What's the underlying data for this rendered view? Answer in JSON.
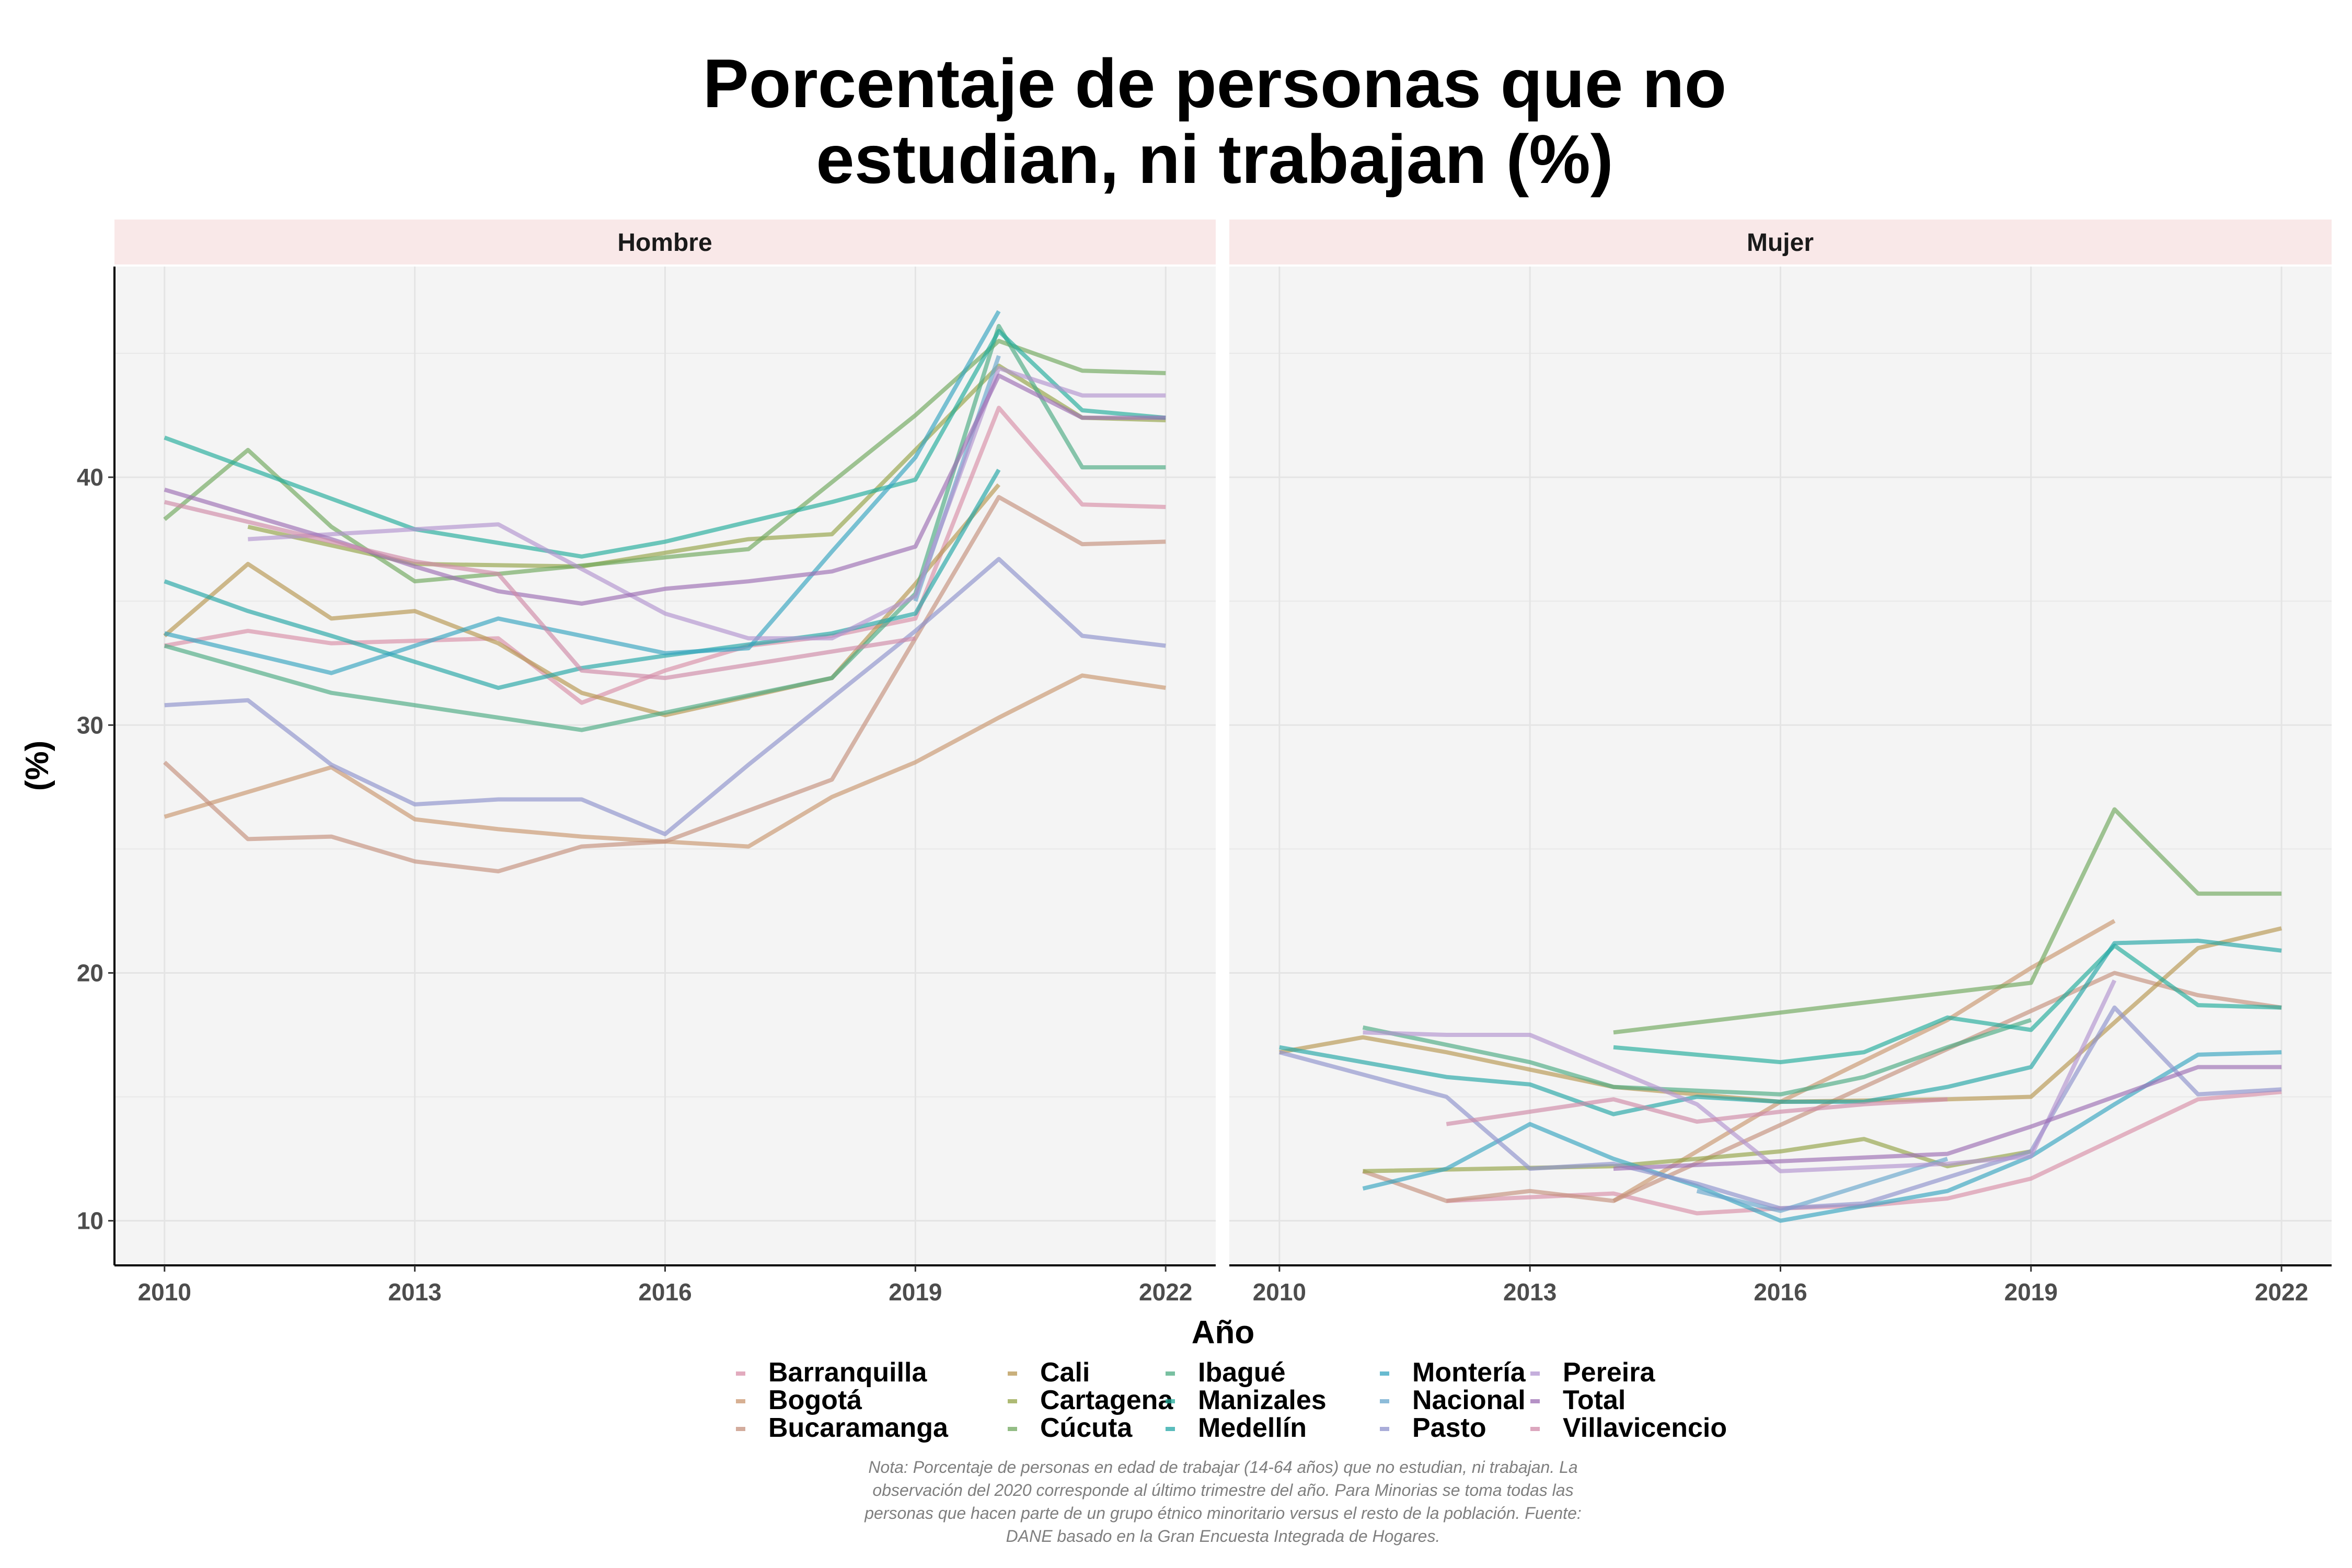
{
  "chart_data": {
    "type": "line",
    "title": "Porcentaje de personas que no estudian, ni trabajan (%)",
    "title_lines": [
      "Porcentaje de personas que no",
      "estudian, ni trabajan (%)"
    ],
    "xlabel": "Año",
    "ylabel": "(%)",
    "x_ticks": [
      "2010",
      "2013",
      "2016",
      "2019",
      "2022"
    ],
    "y_ticks": [
      "10",
      "20",
      "30",
      "40"
    ],
    "xlim": [
      2009.4,
      2022.6
    ],
    "ylim": [
      8.2,
      48.5
    ],
    "grid": true,
    "legend_position": "bottom",
    "note": "Nota: Porcentaje de personas en edad de trabajar (14-64 años) que no estudian, ni trabajan. La observación del 2020 corresponde al último trimestre del año. Para Minorías se toma todas las personas que hacen parte de un grupo étnico minoritario versus el resto de la población. Fuente: DANE basado en la Gran Encuesta Integrada de Hogares.",
    "note_lines": [
      "Nota: Porcentaje de personas en edad de trabajar (14-64 años) que no estudian, ni trabajan. La",
      "observación del 2020 corresponde al último trimestre del año. Para Minorias se toma todas las",
      "personas que hacen parte de un grupo étnico minoritario versus el resto de la población. Fuente:",
      "DANE basado en la Gran Encuesta Integrada de Hogares."
    ],
    "legend_columns": [
      [
        "Barranquilla",
        "Bogotá",
        "Bucaramanga"
      ],
      [
        "Cali",
        "Cartagena",
        "Cúcuta"
      ],
      [
        "Ibagué",
        "Manizales",
        "Medellín"
      ],
      [
        "Montería",
        "Nacional",
        "Pasto"
      ],
      [
        "Pereira",
        "Total",
        "Villavicencio"
      ]
    ],
    "colors": {
      "Barranquilla": "#d88fa8",
      "Bogotá": "#c9966f",
      "Bucaramanga": "#c4907c",
      "Cali": "#b79650",
      "Cartagena": "#93a346",
      "Cúcuta": "#6fa75c",
      "Ibagué": "#4bab82",
      "Manizales": "#22ac9b",
      "Medellín": "#23a6a6",
      "Montería": "#36a4c0",
      "Nacional": "#67a6cc",
      "Pasto": "#8e92cc",
      "Pereira": "#b294d0",
      "Total": "#9c6eb3",
      "Villavicencio": "#d08aa8"
    },
    "facets": [
      {
        "name": "Hombre",
        "series": [
          {
            "name": "Barranquilla",
            "x": [
              2010,
              2011,
              2012,
              2013,
              2014,
              2015,
              2016,
              2017,
              2018,
              2019,
              2020,
              2021,
              2022
            ],
            "y": [
              33.2,
              33.8,
              33.3,
              33.4,
              33.5,
              30.9,
              32.2,
              33.2,
              33.6,
              34.3,
              42.8,
              38.9,
              38.8
            ]
          },
          {
            "name": "Bogotá",
            "x": [
              2010,
              2012,
              2013,
              2014,
              2015,
              2016,
              2017,
              2018,
              2019,
              2020,
              2021,
              2022
            ],
            "y": [
              26.3,
              28.3,
              26.2,
              25.8,
              25.5,
              25.3,
              25.1,
              27.1,
              28.5,
              30.3,
              32.0,
              31.5
            ]
          },
          {
            "name": "Bucaramanga",
            "x": [
              2010,
              2011,
              2012,
              2013,
              2014,
              2015,
              2016,
              2018,
              2019,
              2020,
              2021,
              2022
            ],
            "y": [
              28.5,
              25.4,
              25.5,
              24.5,
              24.1,
              25.1,
              25.3,
              27.8,
              33.5,
              39.2,
              37.3,
              37.4
            ]
          },
          {
            "name": "Cali",
            "x": [
              2010,
              2011,
              2012,
              2013,
              2014,
              2015,
              2016,
              2018,
              2019,
              2020
            ],
            "y": [
              33.6,
              36.5,
              34.3,
              34.6,
              33.3,
              31.3,
              30.4,
              31.9,
              35.7,
              39.7
            ]
          },
          {
            "name": "Cartagena",
            "x": [
              2011,
              2013,
              2015,
              2017,
              2018,
              2020,
              2021,
              2022
            ],
            "y": [
              38.0,
              36.5,
              36.4,
              37.5,
              37.7,
              44.5,
              42.4,
              42.3
            ]
          },
          {
            "name": "Cúcuta",
            "x": [
              2010,
              2011,
              2012,
              2013,
              2014,
              2017,
              2019,
              2020,
              2021,
              2022
            ],
            "y": [
              38.3,
              41.1,
              38.0,
              35.8,
              36.1,
              37.1,
              42.5,
              45.5,
              44.3,
              44.2
            ]
          },
          {
            "name": "Ibagué",
            "x": [
              2010,
              2012,
              2015,
              2016,
              2018,
              2019,
              2020,
              2021,
              2022
            ],
            "y": [
              33.2,
              31.3,
              29.8,
              30.5,
              31.9,
              35.3,
              46.1,
              40.4,
              40.4
            ]
          },
          {
            "name": "Manizales",
            "x": [
              2010,
              2013,
              2015,
              2016,
              2018,
              2019,
              2020,
              2021,
              2022
            ],
            "y": [
              41.6,
              37.9,
              36.8,
              37.4,
              39.0,
              39.9,
              45.9,
              42.7,
              42.4
            ]
          },
          {
            "name": "Medellín",
            "x": [
              2010,
              2011,
              2012,
              2014,
              2015,
              2016,
              2018,
              2019,
              2020
            ],
            "y": [
              35.8,
              34.6,
              33.6,
              31.5,
              32.3,
              32.8,
              33.7,
              34.5,
              40.3
            ]
          },
          {
            "name": "Montería",
            "x": [
              2010,
              2012,
              2014,
              2016,
              2017,
              2018,
              2019,
              2020
            ],
            "y": [
              33.7,
              32.1,
              34.3,
              32.9,
              33.1,
              37.0,
              40.8,
              46.7
            ]
          },
          {
            "name": "Nacional",
            "x": [
              2019,
              2020
            ],
            "y": [
              35.0,
              44.9
            ]
          },
          {
            "name": "Pasto",
            "x": [
              2010,
              2011,
              2012,
              2013,
              2014,
              2015,
              2016,
              2017,
              2018,
              2019,
              2020,
              2021,
              2022
            ],
            "y": [
              30.8,
              31.0,
              28.4,
              26.8,
              27.0,
              27.0,
              25.6,
              28.4,
              31.1,
              33.8,
              36.7,
              33.6,
              33.2
            ]
          },
          {
            "name": "Pereira",
            "x": [
              2011,
              2012,
              2014,
              2016,
              2017,
              2018,
              2019,
              2020,
              2021,
              2022
            ],
            "y": [
              37.5,
              37.7,
              38.1,
              34.5,
              33.5,
              33.5,
              35.2,
              44.4,
              43.3,
              43.3
            ]
          },
          {
            "name": "Total",
            "x": [
              2010,
              2011,
              2012,
              2013,
              2014,
              2015,
              2016,
              2017,
              2018,
              2019,
              2020,
              2021,
              2022
            ],
            "y": [
              39.5,
              38.5,
              37.5,
              36.4,
              35.4,
              34.9,
              35.5,
              35.8,
              36.2,
              37.2,
              44.1,
              42.4,
              42.4
            ]
          },
          {
            "name": "Villavicencio",
            "x": [
              2010,
              2013,
              2014,
              2015,
              2016,
              2019
            ],
            "y": [
              39.0,
              36.6,
              36.1,
              32.2,
              31.9,
              33.5
            ]
          }
        ]
      },
      {
        "name": "Mujer",
        "series": [
          {
            "name": "Barranquilla",
            "x": [
              2012,
              2014,
              2015,
              2016,
              2017,
              2018,
              2019,
              2020,
              2021,
              2022
            ],
            "y": [
              10.8,
              11.1,
              10.3,
              10.5,
              10.6,
              10.9,
              11.7,
              13.3,
              14.9,
              15.2
            ]
          },
          {
            "name": "Bogotá",
            "x": [
              2014,
              2016,
              2018,
              2019,
              2020
            ],
            "y": [
              10.8,
              14.8,
              18.1,
              20.2,
              22.1
            ]
          },
          {
            "name": "Bucaramanga",
            "x": [
              2011,
              2012,
              2013,
              2014,
              2020,
              2021,
              2022
            ],
            "y": [
              12.0,
              10.8,
              11.2,
              10.8,
              20.0,
              19.1,
              18.6
            ]
          },
          {
            "name": "Cali",
            "x": [
              2010,
              2011,
              2012,
              2014,
              2016,
              2018,
              2019,
              2021,
              2022
            ],
            "y": [
              16.8,
              17.4,
              16.8,
              15.4,
              14.8,
              14.9,
              15.0,
              21.0,
              21.8
            ]
          },
          {
            "name": "Cartagena",
            "x": [
              2011,
              2014,
              2016,
              2017,
              2018,
              2019
            ],
            "y": [
              12.0,
              12.2,
              12.8,
              13.3,
              12.2,
              12.8
            ]
          },
          {
            "name": "Cúcuta",
            "x": [
              2014,
              2016,
              2018,
              2019,
              2020,
              2021,
              2022
            ],
            "y": [
              17.6,
              18.4,
              19.2,
              19.6,
              26.6,
              23.2,
              23.2
            ]
          },
          {
            "name": "Ibagué",
            "x": [
              2011,
              2013,
              2014,
              2016,
              2017,
              2018,
              2019
            ],
            "y": [
              17.8,
              16.4,
              15.4,
              15.1,
              15.8,
              17.0,
              18.1
            ]
          },
          {
            "name": "Manizales",
            "x": [
              2014,
              2016,
              2017,
              2018,
              2019,
              2020,
              2021,
              2022
            ],
            "y": [
              17.0,
              16.4,
              16.8,
              18.2,
              17.7,
              21.1,
              18.7,
              18.6
            ]
          },
          {
            "name": "Medellín",
            "x": [
              2010,
              2012,
              2013,
              2014,
              2015,
              2016,
              2017,
              2018,
              2019,
              2020,
              2021,
              2022
            ],
            "y": [
              17.0,
              15.8,
              15.5,
              14.3,
              15.0,
              14.8,
              14.8,
              15.4,
              16.2,
              21.2,
              21.3,
              20.9
            ]
          },
          {
            "name": "Montería",
            "x": [
              2011,
              2012,
              2013,
              2014,
              2015,
              2016,
              2017,
              2018,
              2019,
              2020,
              2021,
              2022
            ],
            "y": [
              11.3,
              12.1,
              13.9,
              12.5,
              11.4,
              10.0,
              10.6,
              11.2,
              12.6,
              14.7,
              16.7,
              16.8
            ]
          },
          {
            "name": "Nacional",
            "x": [
              2015,
              2016,
              2018
            ],
            "y": [
              11.2,
              10.4,
              12.5
            ]
          },
          {
            "name": "Pasto",
            "x": [
              2010,
              2012,
              2013,
              2014,
              2015,
              2016,
              2017,
              2019,
              2020,
              2021,
              2022
            ],
            "y": [
              16.8,
              15.0,
              12.1,
              12.3,
              11.5,
              10.5,
              10.7,
              12.8,
              18.6,
              15.1,
              15.3
            ]
          },
          {
            "name": "Pereira",
            "x": [
              2011,
              2012,
              2013,
              2015,
              2016,
              2018,
              2019,
              2020
            ],
            "y": [
              17.6,
              17.5,
              17.5,
              14.7,
              12.0,
              12.3,
              12.6,
              19.7
            ]
          },
          {
            "name": "Total",
            "x": [
              2014,
              2016,
              2018,
              2019,
              2020,
              2021,
              2022
            ],
            "y": [
              12.1,
              12.4,
              12.7,
              13.8,
              15.0,
              16.2,
              16.2
            ]
          },
          {
            "name": "Villavicencio",
            "x": [
              2012,
              2014,
              2015,
              2016,
              2017,
              2018
            ],
            "y": [
              13.9,
              14.9,
              14.0,
              14.4,
              14.7,
              14.9
            ]
          }
        ]
      }
    ]
  }
}
